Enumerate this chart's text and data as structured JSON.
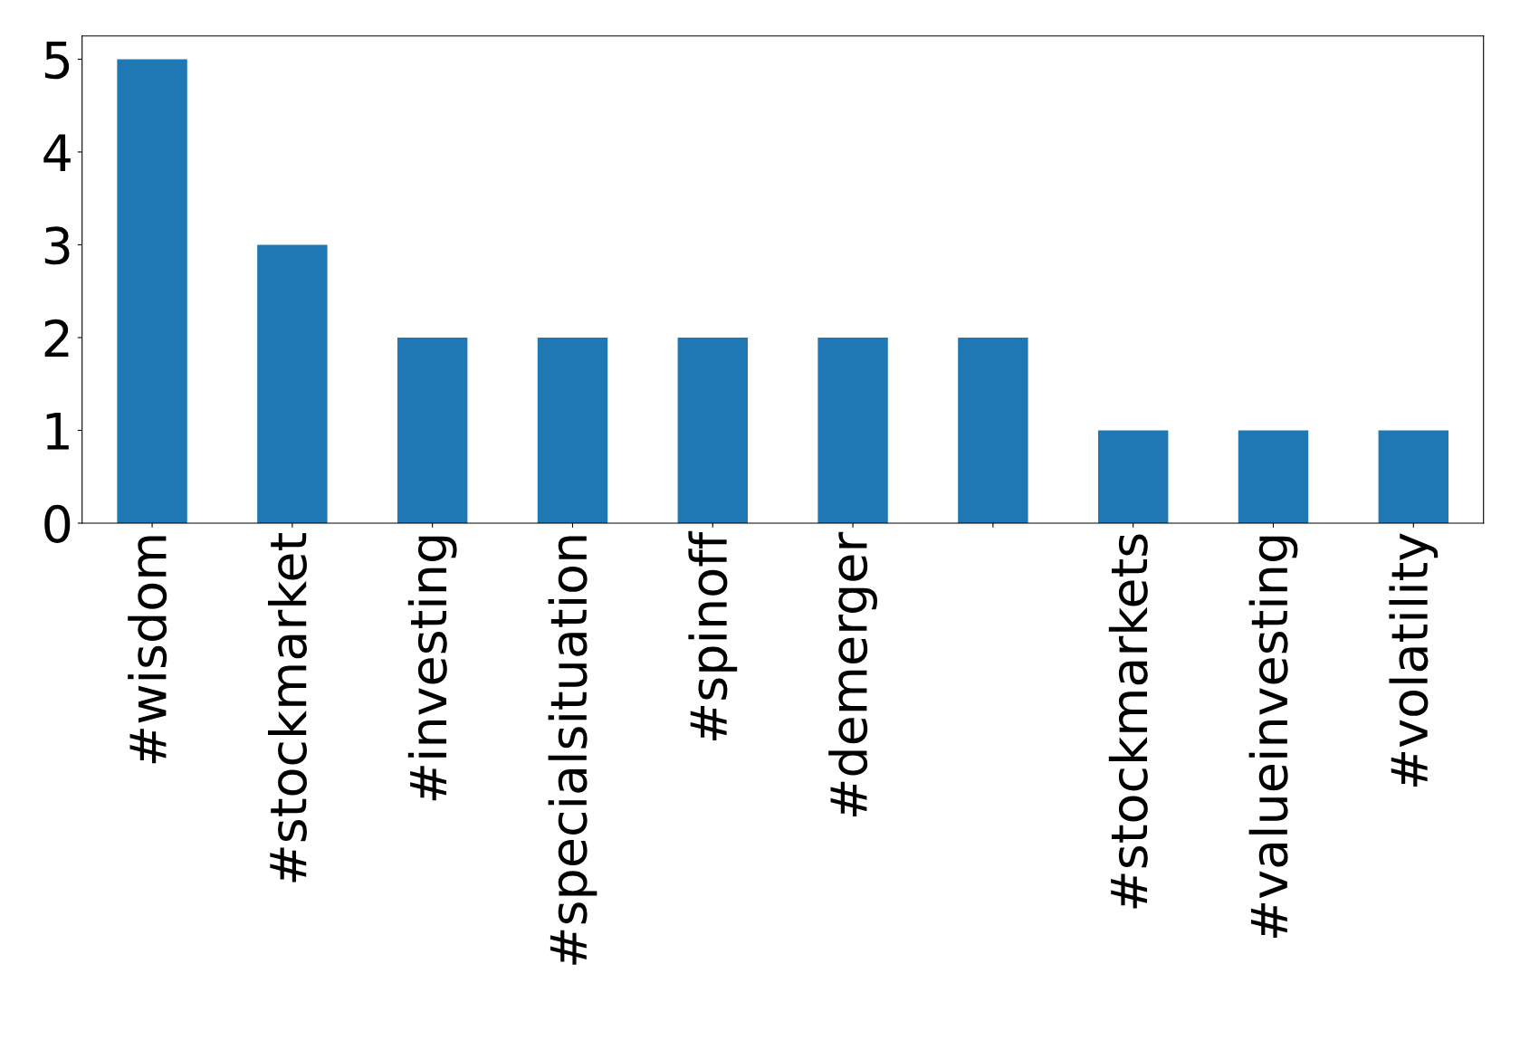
{
  "chart_data": {
    "type": "bar",
    "categories": [
      "#wisdom",
      "#stockmarket",
      "#investing",
      "#specialsituation",
      "#spinoff",
      "#demerger",
      null,
      "#stockmarkets",
      "#valueinvesting",
      "#volatility"
    ],
    "values": [
      5,
      3,
      2,
      2,
      2,
      2,
      2,
      1,
      1,
      1
    ],
    "color": "#1f77b4",
    "ylim": [
      0,
      5.25
    ],
    "yticks": [
      0,
      1,
      2,
      3,
      4,
      5
    ],
    "grid": false,
    "legend": false
  }
}
